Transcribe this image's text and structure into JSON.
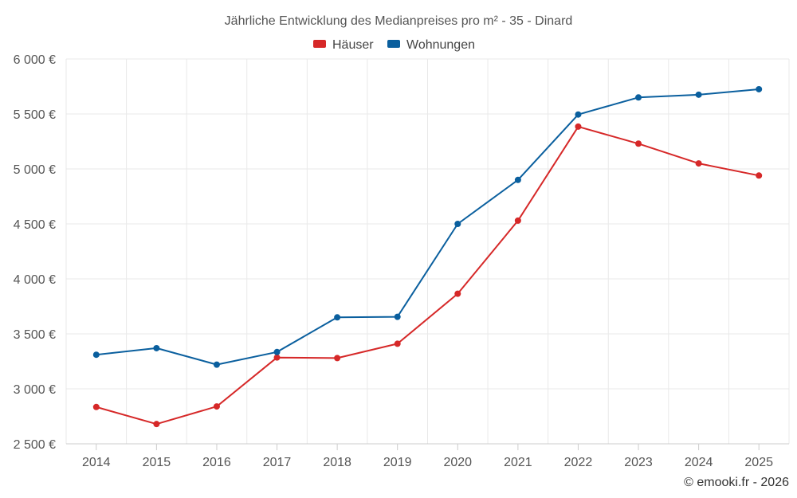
{
  "chart_data": {
    "type": "line",
    "title": "Jährliche Entwicklung des Medianpreises pro m² - 35 - Dinard",
    "xlabel": "",
    "ylabel": "",
    "categories": [
      "2014",
      "2015",
      "2016",
      "2017",
      "2018",
      "2019",
      "2020",
      "2021",
      "2022",
      "2023",
      "2024",
      "2025"
    ],
    "ylim": [
      2500,
      6000
    ],
    "yticks": [
      2500,
      3000,
      3500,
      4000,
      4500,
      5000,
      5500,
      6000
    ],
    "ytick_labels": [
      "2 500 €",
      "3 000 €",
      "3 500 €",
      "4 000 €",
      "4 500 €",
      "5 000 €",
      "5 500 €",
      "6 000 €"
    ],
    "grid": true,
    "legend_position": "top-center",
    "series": [
      {
        "name": "Häuser",
        "color": "#d62828",
        "values": [
          2835,
          2680,
          2840,
          3285,
          3280,
          3410,
          3865,
          4530,
          5385,
          5230,
          5050,
          4940
        ]
      },
      {
        "name": "Wohnungen",
        "color": "#0a5f9e",
        "values": [
          3310,
          3370,
          3220,
          3335,
          3650,
          3655,
          4500,
          4900,
          5495,
          5650,
          5675,
          5725
        ]
      }
    ],
    "credit": "© emooki.fr - 2026"
  }
}
